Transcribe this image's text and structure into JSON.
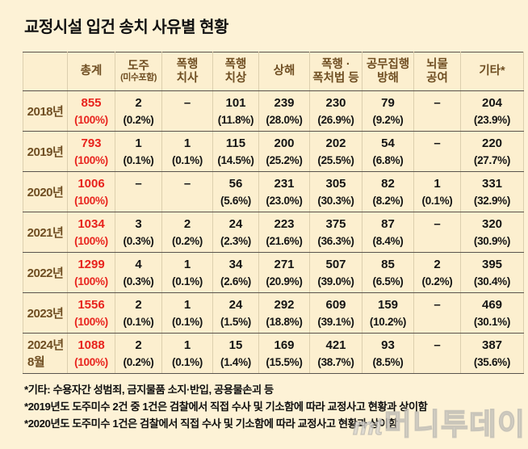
{
  "title": "교정시설 입건 송치 사유별 현황",
  "table": {
    "headers": [
      {
        "lines": [
          "총계"
        ]
      },
      {
        "lines": [
          "도주",
          "(미수포함)"
        ]
      },
      {
        "lines": [
          "폭행",
          "치사"
        ]
      },
      {
        "lines": [
          "폭행",
          "치상"
        ]
      },
      {
        "lines": [
          "상해"
        ]
      },
      {
        "lines": [
          "폭행 ·",
          "폭처법 등"
        ]
      },
      {
        "lines": [
          "공무집행",
          "방해"
        ]
      },
      {
        "lines": [
          "뇌물",
          "공여"
        ]
      },
      {
        "lines": [
          "기타*"
        ]
      }
    ],
    "white_columns": [
      4,
      5,
      8
    ],
    "rows": [
      {
        "year_lines": [
          "2018년"
        ],
        "cells": [
          {
            "v": "855",
            "p": "(100%)"
          },
          {
            "v": "2",
            "p": "(0.2%)"
          },
          {
            "v": "–",
            "p": ""
          },
          {
            "v": "101",
            "p": "(11.8%)"
          },
          {
            "v": "239",
            "p": "(28.0%)"
          },
          {
            "v": "230",
            "p": "(26.9%)"
          },
          {
            "v": "79",
            "p": "(9.2%)"
          },
          {
            "v": "–",
            "p": ""
          },
          {
            "v": "204",
            "p": "(23.9%)"
          }
        ]
      },
      {
        "year_lines": [
          "2019년"
        ],
        "cells": [
          {
            "v": "793",
            "p": "(100%)"
          },
          {
            "v": "1",
            "p": "(0.1%)"
          },
          {
            "v": "1",
            "p": "(0.1%)"
          },
          {
            "v": "115",
            "p": "(14.5%)"
          },
          {
            "v": "200",
            "p": "(25.2%)"
          },
          {
            "v": "202",
            "p": "(25.5%)"
          },
          {
            "v": "54",
            "p": "(6.8%)"
          },
          {
            "v": "–",
            "p": ""
          },
          {
            "v": "220",
            "p": "(27.7%)"
          }
        ]
      },
      {
        "year_lines": [
          "2020년"
        ],
        "cells": [
          {
            "v": "1006",
            "p": "(100%)"
          },
          {
            "v": "–",
            "p": ""
          },
          {
            "v": "–",
            "p": ""
          },
          {
            "v": "56",
            "p": "(5.6%)"
          },
          {
            "v": "231",
            "p": "(23.0%)"
          },
          {
            "v": "305",
            "p": "(30.3%)"
          },
          {
            "v": "82",
            "p": "(8.2%)"
          },
          {
            "v": "1",
            "p": "(0.1%)"
          },
          {
            "v": "331",
            "p": "(32.9%)"
          }
        ]
      },
      {
        "year_lines": [
          "2021년"
        ],
        "cells": [
          {
            "v": "1034",
            "p": "(100%)"
          },
          {
            "v": "3",
            "p": "(0.3%)"
          },
          {
            "v": "2",
            "p": "(0.2%)"
          },
          {
            "v": "24",
            "p": "(2.3%)"
          },
          {
            "v": "223",
            "p": "(21.6%)"
          },
          {
            "v": "375",
            "p": "(36.3%)"
          },
          {
            "v": "87",
            "p": "(8.4%)"
          },
          {
            "v": "–",
            "p": ""
          },
          {
            "v": "320",
            "p": "(30.9%)"
          }
        ]
      },
      {
        "year_lines": [
          "2022년"
        ],
        "cells": [
          {
            "v": "1299",
            "p": "(100%)"
          },
          {
            "v": "4",
            "p": "(0.3%)"
          },
          {
            "v": "1",
            "p": "(0.1%)"
          },
          {
            "v": "34",
            "p": "(2.6%)"
          },
          {
            "v": "271",
            "p": "(20.9%)"
          },
          {
            "v": "507",
            "p": "(39.0%)"
          },
          {
            "v": "85",
            "p": "(6.5%)"
          },
          {
            "v": "2",
            "p": "(0.2%)"
          },
          {
            "v": "395",
            "p": "(30.4%)"
          }
        ]
      },
      {
        "year_lines": [
          "2023년"
        ],
        "cells": [
          {
            "v": "1556",
            "p": "(100%)"
          },
          {
            "v": "2",
            "p": "(0.1%)"
          },
          {
            "v": "1",
            "p": "(0.1%)"
          },
          {
            "v": "24",
            "p": "(1.5%)"
          },
          {
            "v": "292",
            "p": "(18.8%)"
          },
          {
            "v": "609",
            "p": "(39.1%)"
          },
          {
            "v": "159",
            "p": "(10.2%)"
          },
          {
            "v": "–",
            "p": ""
          },
          {
            "v": "469",
            "p": "(30.1%)"
          }
        ]
      },
      {
        "year_lines": [
          "2024년",
          "8월"
        ],
        "cells": [
          {
            "v": "1088",
            "p": "(100%)"
          },
          {
            "v": "2",
            "p": "(0.2%)"
          },
          {
            "v": "1",
            "p": "(0.1%)"
          },
          {
            "v": "15",
            "p": "(1.4%)"
          },
          {
            "v": "169",
            "p": "(15.5%)"
          },
          {
            "v": "421",
            "p": "(38.7%)"
          },
          {
            "v": "93",
            "p": "(8.5%)"
          },
          {
            "v": "–",
            "p": ""
          },
          {
            "v": "387",
            "p": "(35.6%)"
          }
        ]
      }
    ]
  },
  "footnotes": [
    "*기타: 수용자간 성범죄, 금지물품 소지·반입, 공용물손괴 등",
    "*2019년도 도주미수 2건 중 1건은 검찰에서 직접 수사 및 기소함에 따라 교정사고 현황과 상이함",
    "*2020년도 도주미수 1건은 검찰에서 직접 수사 및 기소함에 따라 교정사고 현황과 상이함"
  ],
  "watermark": {
    "logo": "mt",
    "text": "머니투데이"
  },
  "colors": {
    "page_bg": "#fdf2d6",
    "header_bg": "#faeac6",
    "cell_bg": "#fcefcf",
    "white_cell_bg": "#ffffff",
    "total_red": "#e8231d",
    "brown_text": "#6f4e22",
    "dark_rule": "#59544d",
    "light_rule": "#dccfae"
  },
  "chart_data": {
    "type": "table",
    "title": "교정시설 입건 송치 사유별 현황",
    "columns": [
      "총계",
      "도주(미수포함)",
      "폭행치사",
      "폭행치상",
      "상해",
      "폭행·폭처법 등",
      "공무집행방해",
      "뇌물공여",
      "기타*"
    ],
    "years": [
      "2018년",
      "2019년",
      "2020년",
      "2021년",
      "2022년",
      "2023년",
      "2024년 8월"
    ],
    "counts": [
      [
        855,
        2,
        null,
        101,
        239,
        230,
        79,
        null,
        204
      ],
      [
        793,
        1,
        1,
        115,
        200,
        202,
        54,
        null,
        220
      ],
      [
        1006,
        null,
        null,
        56,
        231,
        305,
        82,
        1,
        331
      ],
      [
        1034,
        3,
        2,
        24,
        223,
        375,
        87,
        null,
        320
      ],
      [
        1299,
        4,
        1,
        34,
        271,
        507,
        85,
        2,
        395
      ],
      [
        1556,
        2,
        1,
        24,
        292,
        609,
        159,
        null,
        469
      ],
      [
        1088,
        2,
        1,
        15,
        169,
        421,
        93,
        null,
        387
      ]
    ],
    "percents": [
      [
        100,
        0.2,
        null,
        11.8,
        28.0,
        26.9,
        9.2,
        null,
        23.9
      ],
      [
        100,
        0.1,
        0.1,
        14.5,
        25.2,
        25.5,
        6.8,
        null,
        27.7
      ],
      [
        100,
        null,
        null,
        5.6,
        23.0,
        30.3,
        8.2,
        0.1,
        32.9
      ],
      [
        100,
        0.3,
        0.2,
        2.3,
        21.6,
        36.3,
        8.4,
        null,
        30.9
      ],
      [
        100,
        0.3,
        0.1,
        2.6,
        20.9,
        39.0,
        6.5,
        0.2,
        30.4
      ],
      [
        100,
        0.1,
        0.1,
        1.5,
        18.8,
        39.1,
        10.2,
        null,
        30.1
      ],
      [
        100,
        0.2,
        0.1,
        1.4,
        15.5,
        38.7,
        8.5,
        null,
        35.6
      ]
    ]
  }
}
